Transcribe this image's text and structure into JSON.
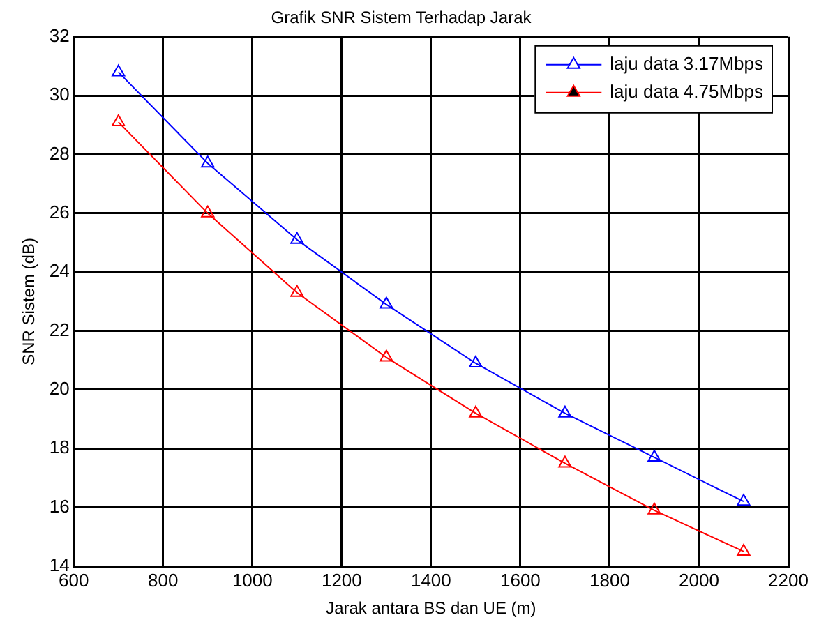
{
  "chart_data": {
    "type": "line",
    "title": "Grafik SNR Sistem Terhadap Jarak",
    "xlabel": "Jarak antara BS dan UE (m)",
    "ylabel": "SNR Sistem (dB)",
    "x": [
      700,
      900,
      1100,
      1300,
      1500,
      1700,
      1900,
      2100
    ],
    "series": [
      {
        "name": "laju data 3.17Mbps",
        "color": "#0000ff",
        "values": [
          30.8,
          27.7,
          25.1,
          22.9,
          20.9,
          19.2,
          17.7,
          16.2
        ]
      },
      {
        "name": "laju data 4.75Mbps",
        "color": "#ff0000",
        "values": [
          29.1,
          26.0,
          23.3,
          21.1,
          19.2,
          17.5,
          15.9,
          14.5
        ]
      }
    ],
    "xlim": [
      600,
      2200
    ],
    "xticks": [
      600,
      800,
      1000,
      1200,
      1400,
      1600,
      1800,
      2000,
      2200
    ],
    "ylim": [
      14,
      32
    ],
    "yticks": [
      14,
      16,
      18,
      20,
      22,
      24,
      26,
      28,
      30,
      32
    ],
    "grid": true,
    "legend": "top right",
    "marker": "triangle",
    "line_style": "solid"
  }
}
